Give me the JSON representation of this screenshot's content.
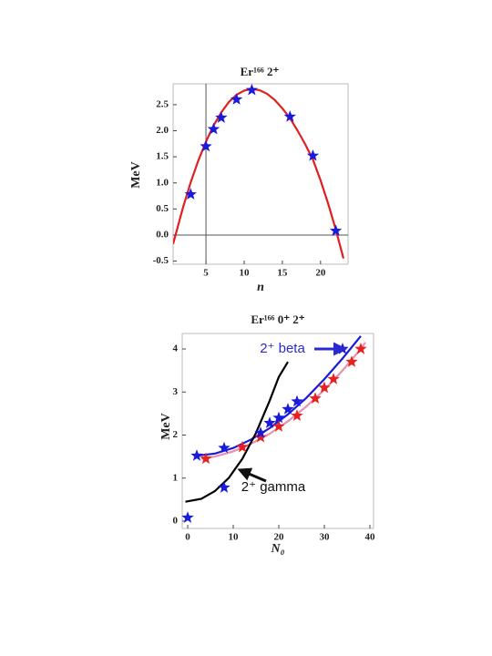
{
  "chart_data": [
    {
      "type": "scatter",
      "title": "Er¹⁶⁶ 2⁺",
      "xlabel": "n",
      "ylabel": "MeV",
      "xlim": [
        0.7,
        23.6
      ],
      "ylim": [
        -0.56,
        2.9
      ],
      "xticks": [
        5,
        10,
        15,
        20
      ],
      "yticks": [
        -0.5,
        {
          "value": 0,
          "label": "0.0"
        },
        0.5,
        {
          "value": 1,
          "label": "1.0"
        },
        1.5,
        {
          "value": 2,
          "label": "2.0"
        },
        2.5
      ],
      "axes_origin": [
        5,
        0
      ],
      "series": [
        {
          "style": "line",
          "color": "#e02020",
          "x": [
            0.7,
            2,
            3,
            4,
            5,
            6,
            7,
            8,
            9,
            10,
            11,
            12,
            13,
            14,
            15,
            16,
            17,
            18,
            19,
            20,
            21,
            22,
            23
          ],
          "values": [
            -0.17,
            0.53,
            1.01,
            1.43,
            1.79,
            2.1,
            2.35,
            2.55,
            2.69,
            2.77,
            2.8,
            2.78,
            2.71,
            2.59,
            2.43,
            2.24,
            2.0,
            1.74,
            1.45,
            1.05,
            0.6,
            0.1,
            -0.45
          ]
        },
        {
          "style": "star",
          "color": "#1a1adb",
          "x": [
            3,
            5,
            6,
            7,
            9,
            11,
            16,
            19,
            22
          ],
          "values": [
            0.78,
            1.7,
            2.03,
            2.25,
            2.6,
            2.78,
            2.27,
            1.52,
            0.08
          ]
        }
      ]
    },
    {
      "type": "scatter",
      "title": "Er¹⁶⁶ 0⁺ 2⁺",
      "xlabel": "N₀",
      "ylabel": "MeV",
      "xlim": [
        -1.2,
        40.8
      ],
      "ylim": [
        -0.17,
        4.36
      ],
      "xticks": [
        0,
        10,
        20,
        30,
        40
      ],
      "yticks": [
        0,
        1,
        2,
        3,
        4
      ],
      "annotations": [
        {
          "text": "2⁺ beta",
          "color": "#2a2ad0"
        },
        {
          "text": "2⁺ gamma",
          "color": "#111111"
        }
      ],
      "series": [
        {
          "style": "line",
          "color": "#e890b0",
          "x": [
            3,
            6,
            10,
            14,
            18,
            22,
            26,
            30,
            34,
            38,
            39
          ],
          "values": [
            1.45,
            1.5,
            1.62,
            1.8,
            2.03,
            2.32,
            2.66,
            3.05,
            3.5,
            4.0,
            4.15
          ]
        },
        {
          "style": "line",
          "color": "#1a1adb",
          "x": [
            2,
            6,
            10,
            14,
            18,
            22,
            26,
            30,
            34,
            38
          ],
          "values": [
            1.52,
            1.57,
            1.7,
            1.9,
            2.16,
            2.48,
            2.86,
            3.3,
            3.78,
            4.3
          ]
        },
        {
          "style": "line",
          "color": "#000000",
          "x": [
            -0.5,
            3,
            6,
            9,
            12,
            15,
            18,
            20,
            22
          ],
          "values": [
            0.45,
            0.52,
            0.7,
            1.0,
            1.45,
            2.05,
            2.8,
            3.35,
            3.7
          ]
        },
        {
          "style": "star",
          "color": "#e82020",
          "x": [
            4,
            12,
            16,
            20,
            24,
            28,
            30,
            32,
            36,
            38
          ],
          "values": [
            1.45,
            1.72,
            1.95,
            2.2,
            2.45,
            2.85,
            3.1,
            3.3,
            3.7,
            4.0
          ]
        },
        {
          "style": "star",
          "color": "#1a1adb",
          "x": [
            0,
            2,
            8,
            8,
            16,
            18,
            20,
            22,
            24,
            34
          ],
          "values": [
            0.08,
            1.52,
            0.78,
            1.7,
            2.05,
            2.28,
            2.4,
            2.6,
            2.78,
            4.0
          ]
        }
      ]
    }
  ]
}
